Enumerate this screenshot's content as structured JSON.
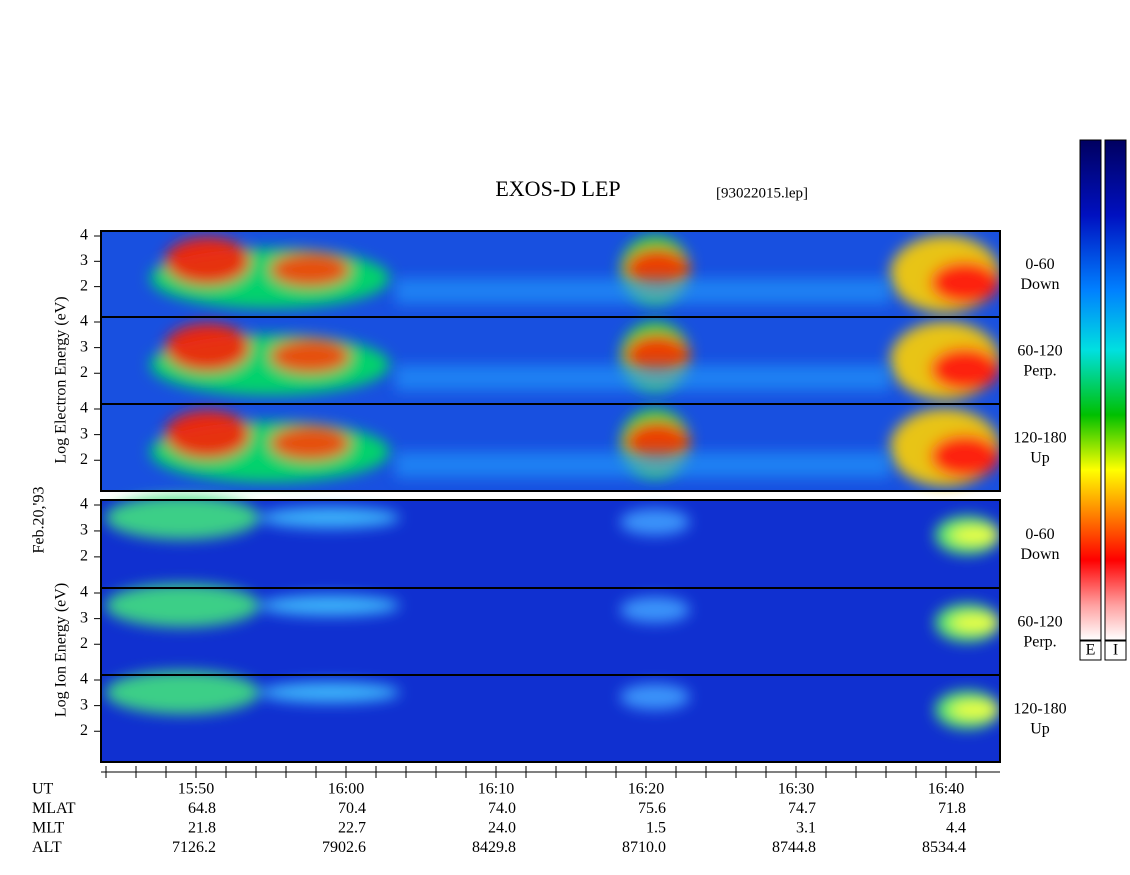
{
  "title": "EXOS-D LEP",
  "file": "[93022015.lep]",
  "y_labels": {
    "electron": "Log Electron Energy (eV)",
    "date": "Feb.20,'93",
    "ion": "Log Ion Energy (eV)"
  },
  "panels": [
    {
      "ticks": [
        "4",
        "3",
        "2"
      ],
      "angle": "0-60",
      "direction": "Down"
    },
    {
      "ticks": [
        "4",
        "3",
        "2"
      ],
      "angle": "60-120",
      "direction": "Perp."
    },
    {
      "ticks": [
        "4",
        "3",
        "2"
      ],
      "angle": "120-180",
      "direction": "Up"
    },
    {
      "ticks": [
        "4",
        "3",
        "2"
      ],
      "angle": "0-60",
      "direction": "Down"
    },
    {
      "ticks": [
        "4",
        "3",
        "2"
      ],
      "angle": "60-120",
      "direction": "Perp."
    },
    {
      "ticks": [
        "4",
        "3",
        "2"
      ],
      "angle": "120-180",
      "direction": "Up"
    }
  ],
  "colorbars": [
    "E",
    "I"
  ],
  "time_axis": [
    [
      "UT",
      "15:50",
      "16:00",
      "16:10",
      "16:20",
      "16:30",
      "16:40"
    ],
    [
      "MLAT",
      "64.8",
      "70.4",
      "74.0",
      "75.6",
      "74.7",
      "71.8"
    ],
    [
      "MLT",
      "21.8",
      "22.7",
      "24.0",
      "1.5",
      "3.1",
      "4.4"
    ],
    [
      "ALT",
      "7126.2",
      "7902.6",
      "8429.8",
      "8710.0",
      "8744.8",
      "8534.4"
    ]
  ]
}
